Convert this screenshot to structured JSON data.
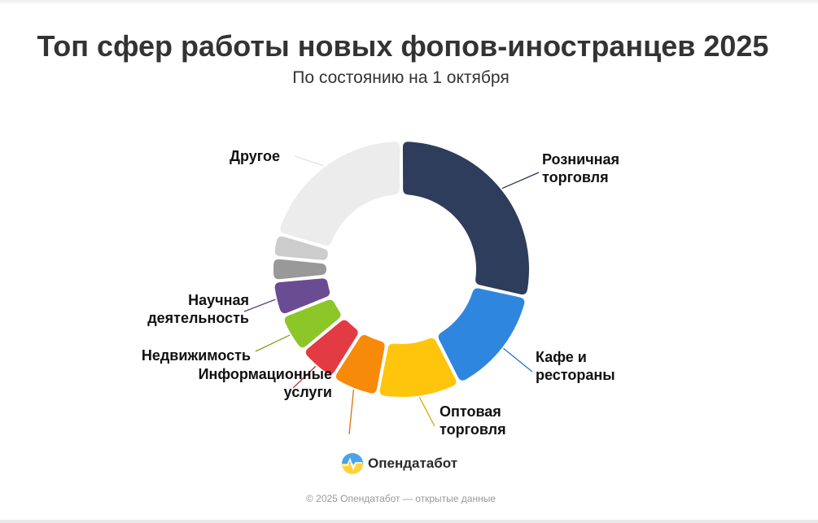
{
  "chart_data": {
    "type": "pie",
    "title": "Топ сфер работы новых фопов-иностранцев 2025",
    "subtitle": "По состоянию на 1 октября",
    "slices": [
      {
        "label": "Розничная\nторговля",
        "value": 28.5,
        "color": "#2e3d5c"
      },
      {
        "label": "Кафе и\nрестораны",
        "value": 14.0,
        "color": "#2f86de"
      },
      {
        "label": "Оптовая\nторговля",
        "value": 10.5,
        "color": "#ffc40c"
      },
      {
        "label": "",
        "value": 6.0,
        "color": "#f78a09"
      },
      {
        "label": "Информационные\nуслуги",
        "value": 5.0,
        "color": "#e23b44"
      },
      {
        "label": "Недвижимость",
        "value": 5.0,
        "color": "#8cc628"
      },
      {
        "label": "Научная\nдеятельность",
        "value": 4.5,
        "color": "#6a4c93"
      },
      {
        "label": "",
        "value": 3.0,
        "color": "#999999"
      },
      {
        "label": "",
        "value": 3.0,
        "color": "#cccccc"
      },
      {
        "label": "Другое",
        "value": 20.5,
        "color": "#ececec"
      }
    ]
  },
  "branding": {
    "name": "Опендатабот",
    "credits": "© 2025 Опендатабот — открытые данные"
  }
}
